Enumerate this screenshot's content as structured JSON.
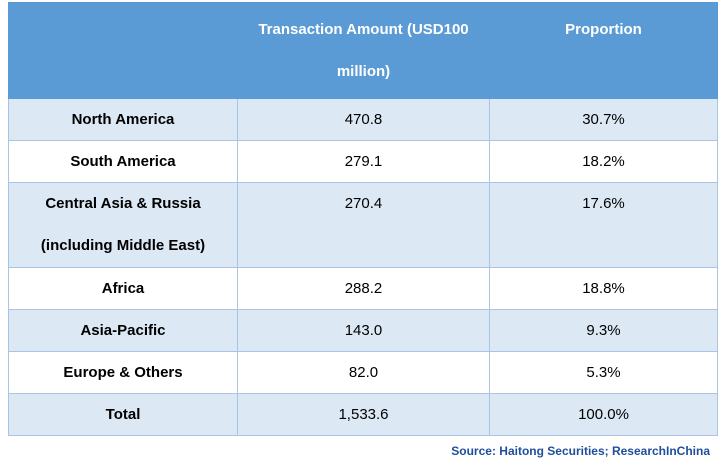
{
  "table": {
    "headers": [
      "",
      "Transaction Amount (USD100\nmillion)",
      "Proportion"
    ],
    "rows": [
      {
        "region": "North America",
        "amount": "470.8",
        "proportion": "30.7%"
      },
      {
        "region": "South America",
        "amount": "279.1",
        "proportion": "18.2%"
      },
      {
        "region": "Central Asia & Russia\n(including Middle East)",
        "amount": "270.4",
        "proportion": "17.6%"
      },
      {
        "region": "Africa",
        "amount": "288.2",
        "proportion": "18.8%"
      },
      {
        "region": "Asia-Pacific",
        "amount": "143.0",
        "proportion": "9.3%"
      },
      {
        "region": "Europe & Others",
        "amount": "82.0",
        "proportion": "5.3%"
      },
      {
        "region": "Total",
        "amount": "1,533.6",
        "proportion": "100.0%"
      }
    ]
  },
  "source": "Source: Haitong Securities; ResearchInChina",
  "colors": {
    "header_bg": "#5b9bd5",
    "band_bg": "#dce9f5",
    "source_text": "#1f4e9c"
  }
}
